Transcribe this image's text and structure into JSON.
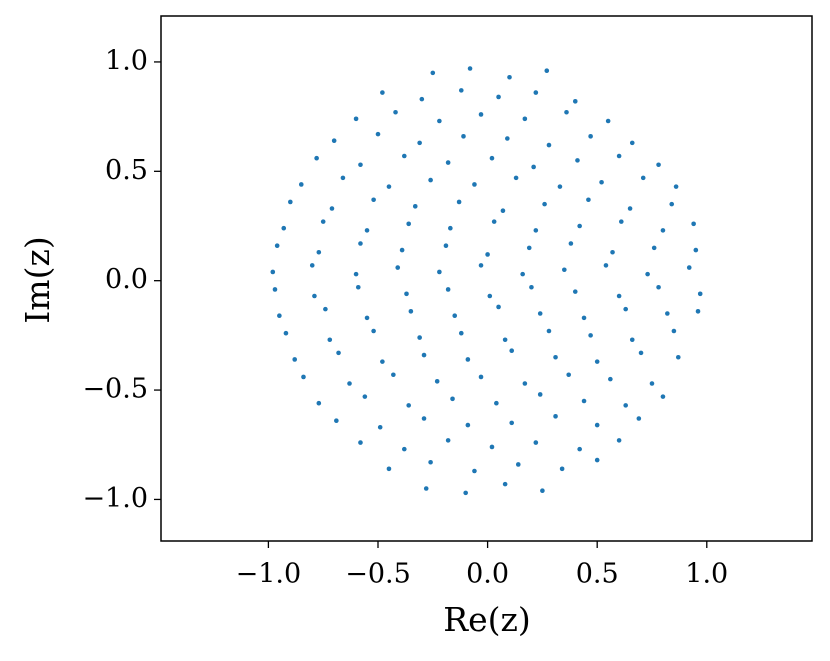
{
  "chart_data": {
    "type": "scatter",
    "xlabel": "Re(z)",
    "ylabel": "Im(z)",
    "color": "#1f77b4",
    "grid": false,
    "xlim": [
      -1.49,
      1.48
    ],
    "ylim": [
      -1.19,
      1.21
    ],
    "xticks": [
      {
        "value": -1,
        "label": "−1.0"
      },
      {
        "value": -0.5,
        "label": "−0.5"
      },
      {
        "value": 0,
        "label": "0.0"
      },
      {
        "value": 0.5,
        "label": "0.5"
      },
      {
        "value": 1,
        "label": "1.0"
      }
    ],
    "yticks": [
      {
        "value": -1,
        "label": "−1.0"
      },
      {
        "value": -0.5,
        "label": "−0.5"
      },
      {
        "value": 0,
        "label": "0.0"
      },
      {
        "value": 0.5,
        "label": "0.5"
      },
      {
        "value": 1,
        "label": "1.0"
      }
    ],
    "x": [
      -0.25,
      -0.08,
      0.1,
      0.27,
      -0.48,
      -0.3,
      -0.12,
      0.05,
      0.22,
      0.4,
      -0.6,
      -0.42,
      -0.22,
      -0.03,
      0.17,
      0.36,
      0.55,
      -0.7,
      -0.5,
      -0.31,
      -0.11,
      0.09,
      0.28,
      0.47,
      0.66,
      -0.78,
      -0.58,
      -0.38,
      -0.18,
      0.02,
      0.21,
      0.41,
      0.6,
      0.78,
      -0.85,
      -0.66,
      -0.45,
      -0.26,
      -0.06,
      0.13,
      0.33,
      0.52,
      0.71,
      0.86,
      -0.9,
      -0.71,
      -0.52,
      -0.33,
      -0.13,
      0.07,
      0.26,
      0.46,
      0.65,
      0.84,
      -0.93,
      -0.75,
      -0.55,
      -0.36,
      -0.17,
      0.03,
      0.22,
      0.42,
      0.61,
      0.8,
      0.94,
      -0.96,
      -0.77,
      -0.58,
      -0.39,
      -0.19,
      0.0,
      0.19,
      0.38,
      0.57,
      0.76,
      0.95,
      -0.98,
      -0.8,
      -0.6,
      -0.41,
      -0.22,
      -0.03,
      0.16,
      0.35,
      0.54,
      0.73,
      0.92,
      -0.97,
      -0.79,
      -0.59,
      -0.37,
      -0.18,
      0.01,
      0.2,
      0.4,
      0.6,
      0.78,
      0.97,
      -0.95,
      -0.74,
      -0.55,
      -0.35,
      -0.15,
      0.05,
      0.24,
      0.44,
      0.63,
      0.82,
      0.96,
      -0.92,
      -0.72,
      -0.52,
      -0.31,
      -0.12,
      0.08,
      0.28,
      0.47,
      0.66,
      0.85,
      -0.88,
      -0.68,
      -0.48,
      -0.29,
      -0.09,
      0.11,
      0.31,
      0.5,
      0.7,
      0.87,
      -0.84,
      -0.63,
      -0.43,
      -0.23,
      -0.03,
      0.17,
      0.37,
      0.56,
      0.75,
      -0.77,
      -0.56,
      -0.36,
      -0.16,
      0.04,
      0.24,
      0.44,
      0.63,
      0.8,
      -0.69,
      -0.49,
      -0.29,
      -0.09,
      0.11,
      0.31,
      0.5,
      0.69,
      -0.58,
      -0.38,
      -0.18,
      0.02,
      0.22,
      0.42,
      0.6,
      -0.45,
      -0.26,
      -0.06,
      0.14,
      0.34,
      0.5,
      -0.28,
      -0.1,
      0.08,
      0.25
    ],
    "y": [
      0.95,
      0.97,
      0.93,
      0.96,
      0.86,
      0.83,
      0.87,
      0.84,
      0.86,
      0.82,
      0.74,
      0.77,
      0.73,
      0.76,
      0.74,
      0.77,
      0.73,
      0.64,
      0.67,
      0.63,
      0.66,
      0.65,
      0.62,
      0.66,
      0.63,
      0.56,
      0.53,
      0.57,
      0.54,
      0.56,
      0.52,
      0.55,
      0.57,
      0.53,
      0.44,
      0.47,
      0.43,
      0.46,
      0.44,
      0.47,
      0.43,
      0.45,
      0.47,
      0.43,
      0.36,
      0.33,
      0.37,
      0.34,
      0.36,
      0.32,
      0.35,
      0.37,
      0.33,
      0.35,
      0.24,
      0.27,
      0.23,
      0.26,
      0.24,
      0.27,
      0.23,
      0.25,
      0.27,
      0.23,
      0.26,
      0.16,
      0.13,
      0.17,
      0.14,
      0.16,
      0.12,
      0.15,
      0.17,
      0.13,
      0.15,
      0.14,
      0.04,
      0.07,
      0.03,
      0.06,
      0.04,
      0.07,
      0.03,
      0.05,
      0.07,
      0.03,
      0.06,
      -0.04,
      -0.07,
      -0.03,
      -0.06,
      -0.04,
      -0.07,
      -0.03,
      -0.05,
      -0.07,
      -0.03,
      -0.06,
      -0.16,
      -0.13,
      -0.17,
      -0.14,
      -0.16,
      -0.12,
      -0.15,
      -0.17,
      -0.13,
      -0.15,
      -0.14,
      -0.24,
      -0.27,
      -0.23,
      -0.26,
      -0.24,
      -0.27,
      -0.23,
      -0.25,
      -0.27,
      -0.23,
      -0.36,
      -0.33,
      -0.37,
      -0.34,
      -0.36,
      -0.32,
      -0.35,
      -0.37,
      -0.33,
      -0.35,
      -0.44,
      -0.47,
      -0.43,
      -0.46,
      -0.44,
      -0.47,
      -0.43,
      -0.45,
      -0.47,
      -0.56,
      -0.53,
      -0.57,
      -0.54,
      -0.56,
      -0.52,
      -0.55,
      -0.57,
      -0.53,
      -0.64,
      -0.67,
      -0.63,
      -0.66,
      -0.65,
      -0.62,
      -0.66,
      -0.63,
      -0.74,
      -0.77,
      -0.73,
      -0.76,
      -0.74,
      -0.77,
      -0.73,
      -0.86,
      -0.83,
      -0.87,
      -0.84,
      -0.86,
      -0.82,
      -0.95,
      -0.97,
      -0.93,
      -0.96
    ]
  }
}
